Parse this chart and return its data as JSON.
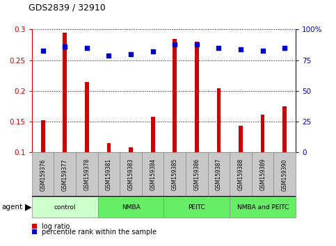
{
  "title": "GDS2839 / 32910",
  "samples": [
    "GSM159376",
    "GSM159377",
    "GSM159378",
    "GSM159381",
    "GSM159383",
    "GSM159384",
    "GSM159385",
    "GSM159386",
    "GSM159387",
    "GSM159388",
    "GSM159389",
    "GSM159390"
  ],
  "log_ratio": [
    0.152,
    0.295,
    0.215,
    0.115,
    0.108,
    0.158,
    0.285,
    0.28,
    0.205,
    0.143,
    0.162,
    0.175
  ],
  "percentile_rank": [
    83,
    86,
    85,
    79,
    80,
    82,
    88,
    88,
    85,
    84,
    83,
    85
  ],
  "ylim_left": [
    0.1,
    0.3
  ],
  "ylim_right": [
    0,
    100
  ],
  "yticks_left": [
    0.1,
    0.15,
    0.2,
    0.25,
    0.3
  ],
  "yticks_right": [
    0,
    25,
    50,
    75,
    100
  ],
  "groups": [
    {
      "label": "control",
      "start": 0,
      "end": 3,
      "color": "#ccffcc"
    },
    {
      "label": "NMBA",
      "start": 3,
      "end": 6,
      "color": "#66ee66"
    },
    {
      "label": "PEITC",
      "start": 6,
      "end": 9,
      "color": "#66ee66"
    },
    {
      "label": "NMBA and PEITC",
      "start": 9,
      "end": 12,
      "color": "#66ee66"
    }
  ],
  "bar_color": "#cc0000",
  "dot_color": "#0000cc",
  "grid_color": "#000000",
  "bg_color": "#ffffff",
  "tick_color_left": "#cc0000",
  "tick_color_right": "#0000cc",
  "sample_box_color": "#c8c8c8",
  "agent_label": "agent",
  "legend_bar_label": "log ratio",
  "legend_dot_label": "percentile rank within the sample",
  "bar_width": 0.18
}
